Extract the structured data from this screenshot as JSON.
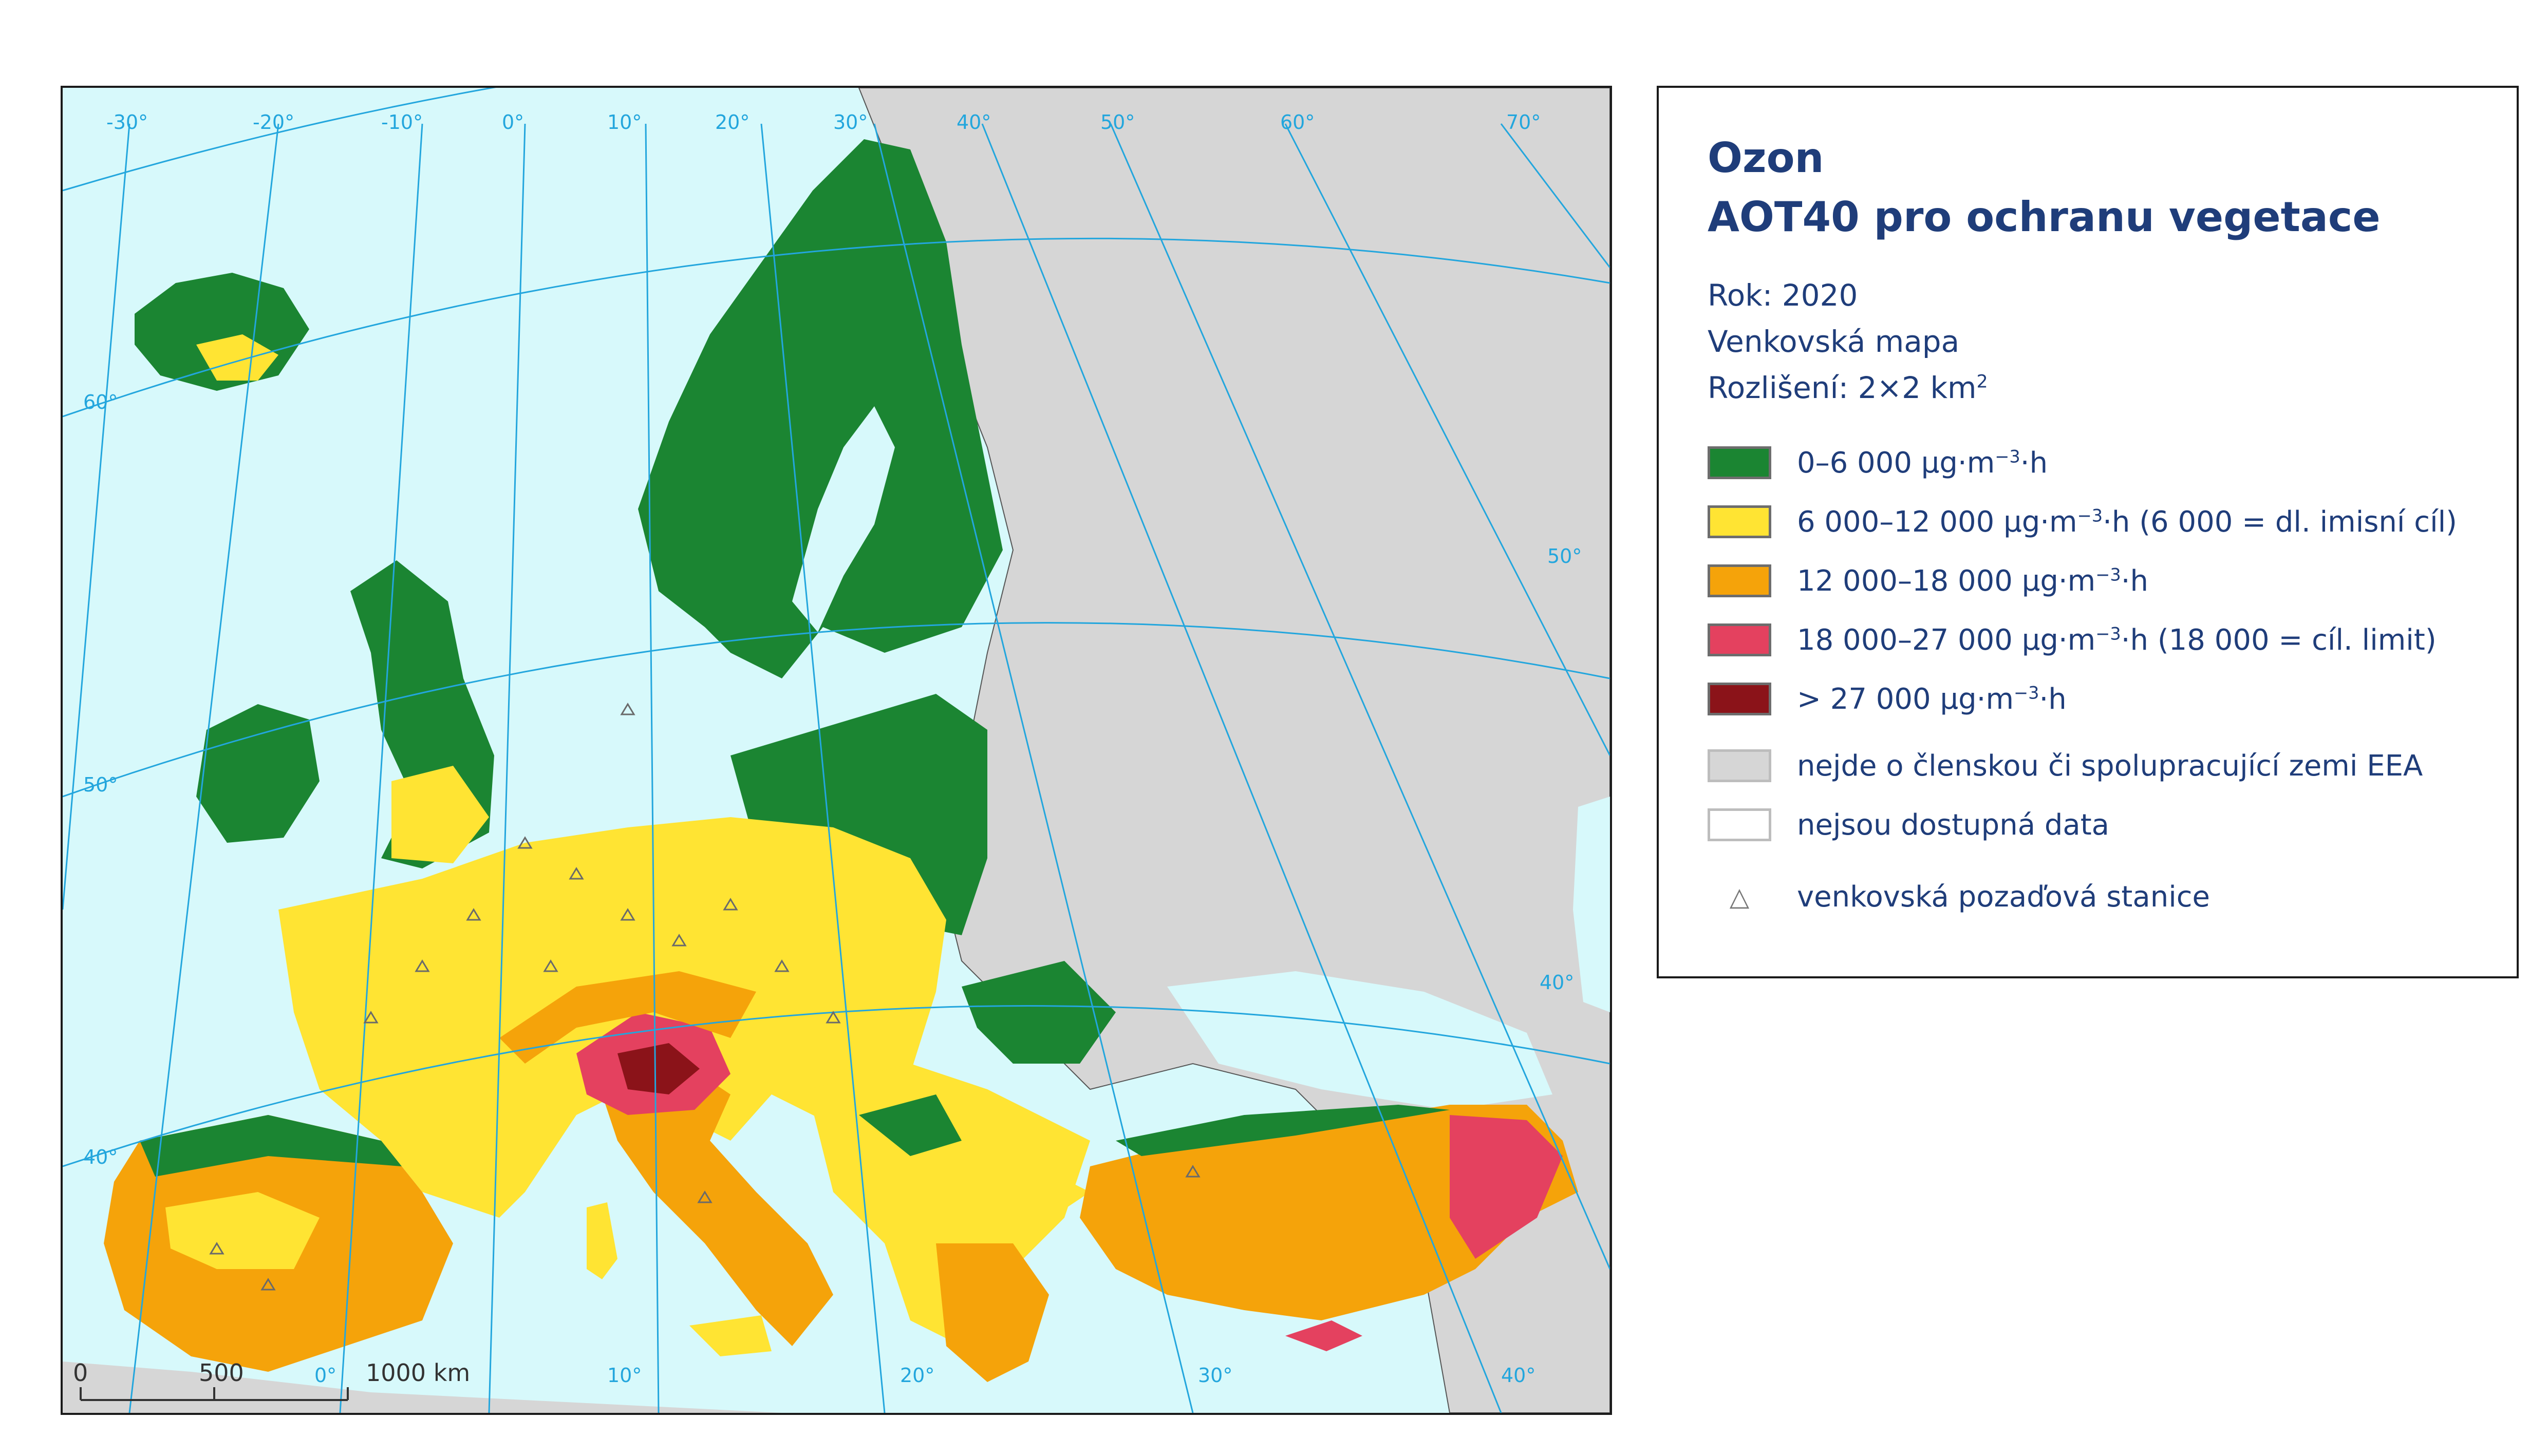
{
  "legend": {
    "title_line1": "Ozon",
    "title_line2": "AOT40 pro ochranu vegetace",
    "year": "Rok: 2020",
    "map_type": "Venkovská mapa",
    "resolution_prefix": "Rozlišení: 2×2 km",
    "resolution_sup": "2",
    "items": [
      {
        "color": "#1b8532",
        "pre": "0–6 000 μg·m",
        "sup": "−3",
        "post": "·h"
      },
      {
        "color": "#ffe433",
        "pre": "6 000–12 000 μg·m",
        "sup": "−3",
        "post": "·h (6 000 = dl. imisní cíl)"
      },
      {
        "color": "#f5a30a",
        "pre": "12 000–18 000 μg·m",
        "sup": "−3",
        "post": "·h"
      },
      {
        "color": "#e4415f",
        "pre": "18 000–27 000 μg·m",
        "sup": "−3",
        "post": "·h (18 000 = cíl. limit)"
      },
      {
        "color": "#8b1319",
        "pre": "> 27 000 μg·m",
        "sup": "−3",
        "post": "·h"
      },
      {
        "color": "#d6d6d6",
        "pre": "nejde o členskou či spolupracující zemi EEA",
        "sup": "",
        "post": ""
      },
      {
        "color": "#ffffff",
        "pre": "nejsou dostupná data",
        "sup": "",
        "post": ""
      }
    ],
    "station_label": "venkovská pozaďová stanice",
    "station_symbol": "△"
  },
  "graticule": {
    "top": [
      "-30°",
      "-20°",
      "-10°",
      "0°",
      "10°",
      "20°",
      "30°",
      "40°",
      "50°",
      "60°",
      "70°"
    ],
    "left": [
      "60°",
      "50°",
      "40°"
    ],
    "right": [
      "50°",
      "40°"
    ],
    "bottom": [
      "0°",
      "10°",
      "20°",
      "30°",
      "40°"
    ]
  },
  "scale_bar": {
    "labels": [
      "0",
      "500",
      "1000 km"
    ]
  },
  "colors": {
    "sea": "#d7f9fb",
    "non_member": "#d6d6d6",
    "graticule": "#23a6dd",
    "legend_text": "#1f3d7a"
  }
}
